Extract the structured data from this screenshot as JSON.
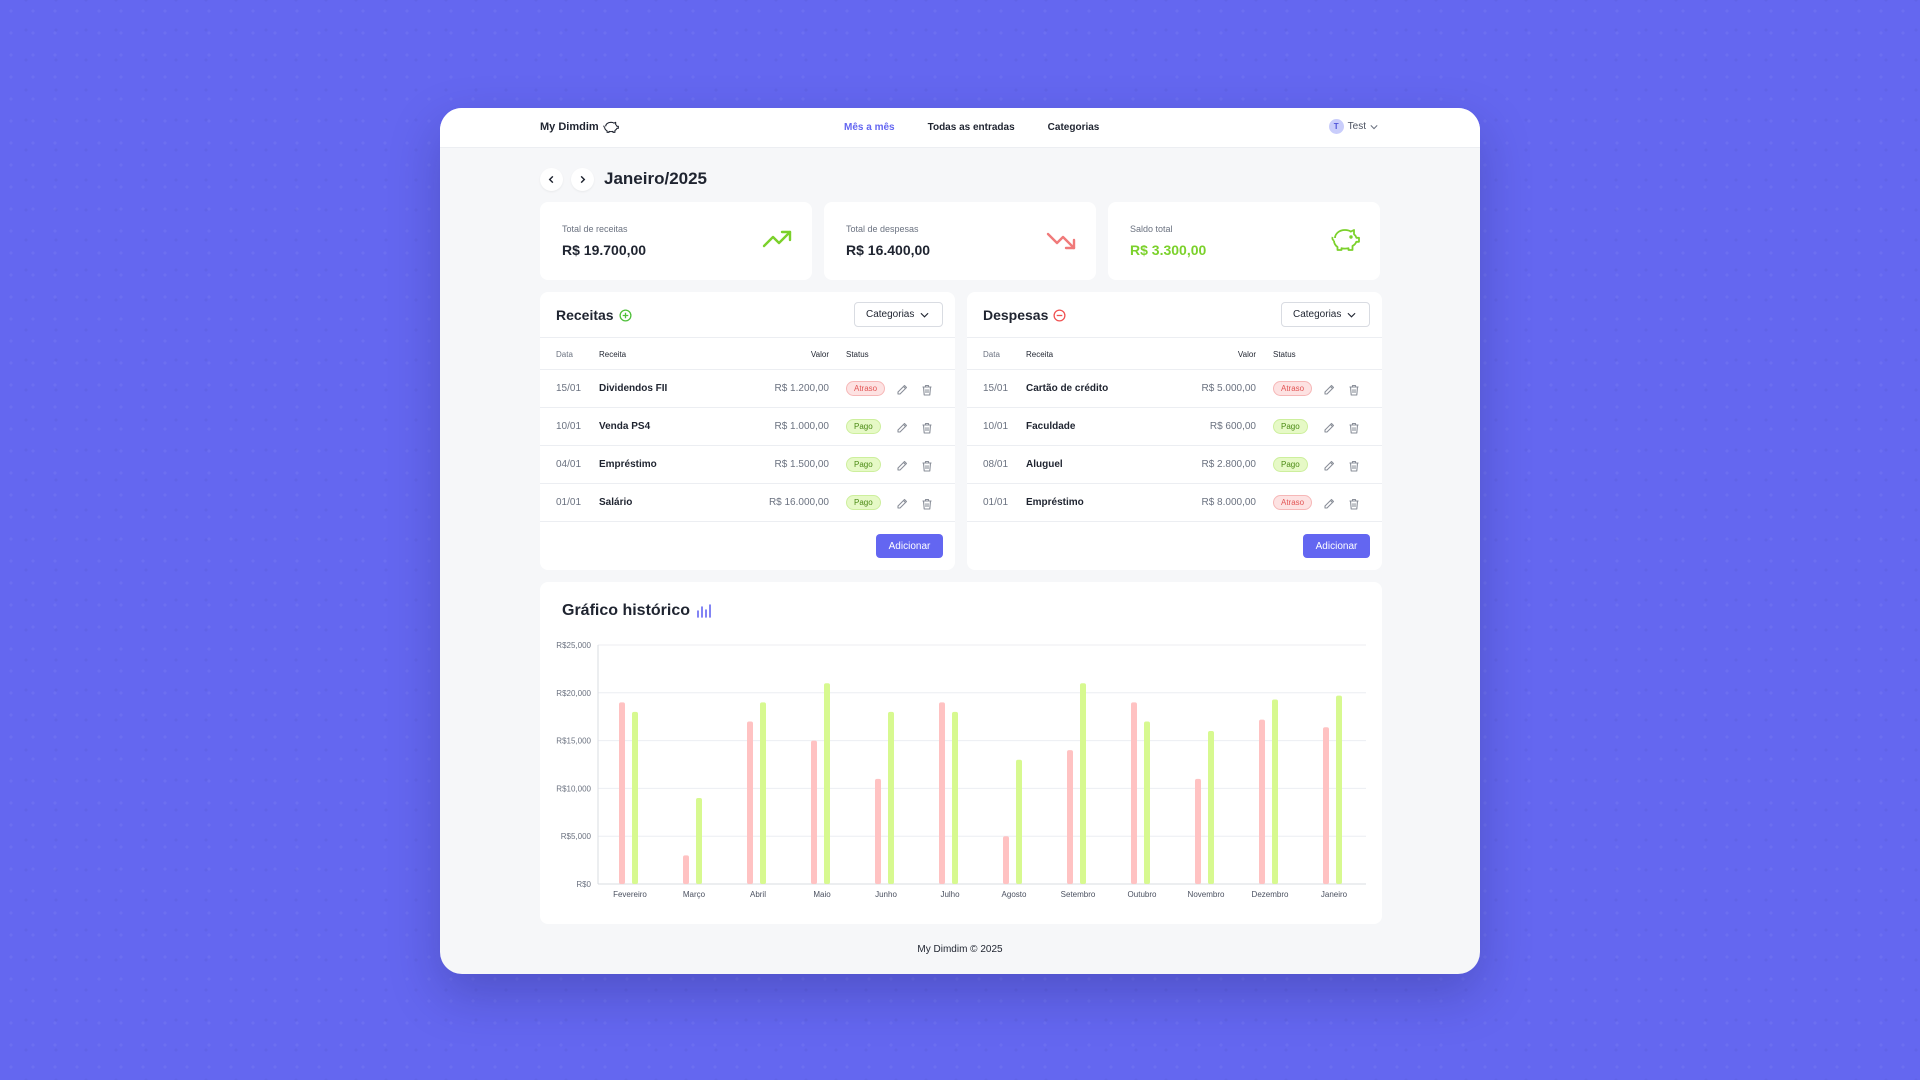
{
  "app": {
    "name": "My Dimdim"
  },
  "nav": {
    "items": [
      "Mês a mês",
      "Todas as entradas",
      "Categorias"
    ],
    "active": 0
  },
  "user": {
    "initial": "T",
    "name": "Test"
  },
  "period": {
    "title": "Janeiro/2025"
  },
  "summary": {
    "income": {
      "label": "Total de receitas",
      "value": "R$ 19.700,00",
      "icon": "trending-up-icon",
      "color": "#7bd12b"
    },
    "expense": {
      "label": "Total de despesas",
      "value": "R$ 16.400,00",
      "icon": "trending-down-icon",
      "color": "#f07a7a"
    },
    "balance": {
      "label": "Saldo total",
      "value": "R$ 3.300,00",
      "icon": "piggy-bank-icon",
      "color": "#7bd12b"
    }
  },
  "receitas": {
    "title": "Receitas",
    "filter": "Categorias",
    "columns": [
      "Data",
      "Receita",
      "Valor",
      "Status"
    ],
    "rows": [
      {
        "date": "15/01",
        "name": "Dividendos FII",
        "value": "R$ 1.200,00",
        "status": "Atraso"
      },
      {
        "date": "10/01",
        "name": "Venda PS4",
        "value": "R$ 1.000,00",
        "status": "Pago"
      },
      {
        "date": "04/01",
        "name": "Empréstimo",
        "value": "R$ 1.500,00",
        "status": "Pago"
      },
      {
        "date": "01/01",
        "name": "Salário",
        "value": "R$ 16.000,00",
        "status": "Pago"
      }
    ],
    "add_label": "Adicionar"
  },
  "despesas": {
    "title": "Despesas",
    "filter": "Categorias",
    "columns": [
      "Data",
      "Receita",
      "Valor",
      "Status"
    ],
    "rows": [
      {
        "date": "15/01",
        "name": "Cartão de crédito",
        "value": "R$ 5.000,00",
        "status": "Atraso"
      },
      {
        "date": "10/01",
        "name": "Faculdade",
        "value": "R$ 600,00",
        "status": "Pago"
      },
      {
        "date": "08/01",
        "name": "Aluguel",
        "value": "R$ 2.800,00",
        "status": "Pago"
      },
      {
        "date": "01/01",
        "name": "Empréstimo",
        "value": "R$ 8.000,00",
        "status": "Atraso"
      }
    ],
    "add_label": "Adicionar"
  },
  "chart": {
    "title": "Gráfico histórico"
  },
  "chart_data": {
    "type": "bar",
    "categories": [
      "Fevereiro",
      "Março",
      "Abril",
      "Maio",
      "Junho",
      "Julho",
      "Agosto",
      "Setembro",
      "Outubro",
      "Novembro",
      "Dezembro",
      "Janeiro"
    ],
    "series": [
      {
        "values": [
          19000,
          3000,
          17000,
          15000,
          11000,
          19000,
          5000,
          14000,
          19000,
          11000,
          17200,
          16400
        ],
        "color": "#ffc2c2"
      },
      {
        "values": [
          18000,
          9000,
          19000,
          21000,
          18000,
          18000,
          13000,
          21000,
          17000,
          16000,
          19300,
          19700
        ],
        "color": "#d7f990"
      }
    ],
    "yticks": [
      "R$0",
      "R$5,000",
      "R$10,000",
      "R$15,000",
      "R$20,000",
      "R$25,000"
    ],
    "ylim": [
      0,
      25000
    ],
    "grid": true
  },
  "footer": {
    "text": "My Dimdim © 2025"
  }
}
